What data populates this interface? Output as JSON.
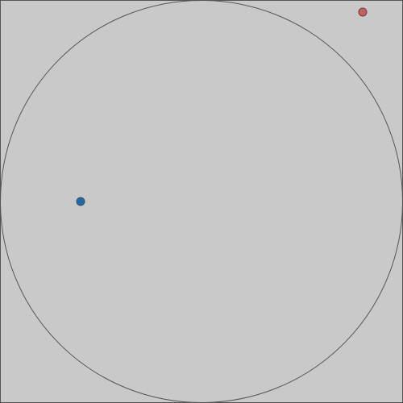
{
  "colors": {
    "background": "#c9c9c9",
    "frame_stroke": "#555555",
    "circle_stroke": "#555555",
    "player_fill": "#1f6aa5",
    "player_stroke": "#3d4f6a",
    "target_fill": "#c06060",
    "target_stroke": "#7a3a3a"
  },
  "scene": {
    "arena_shape": "circle",
    "player": {
      "label": "blue dot",
      "icon": "player-dot"
    },
    "target": {
      "label": "red dot",
      "icon": "target-dot"
    }
  }
}
